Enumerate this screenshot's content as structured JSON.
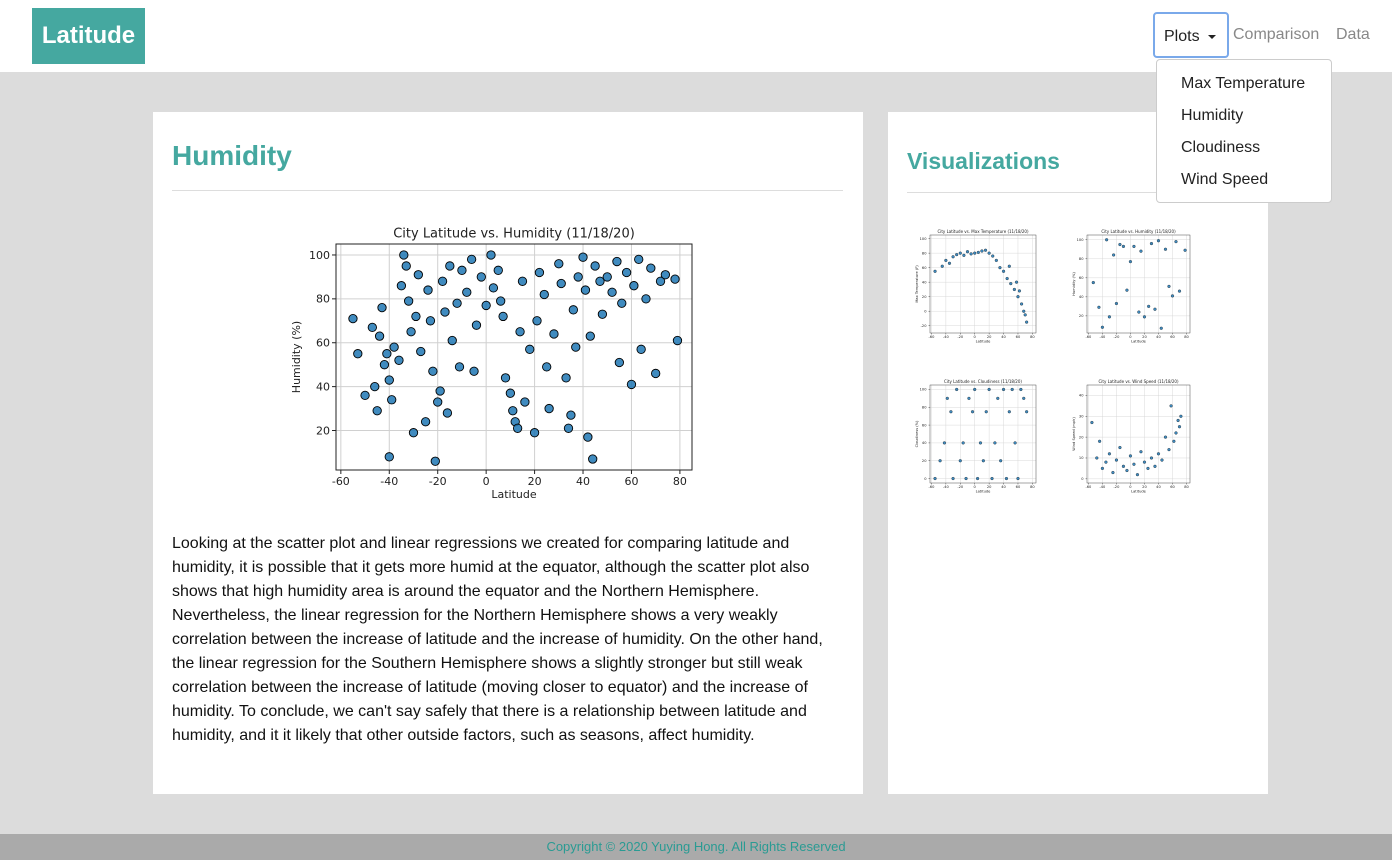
{
  "navbar": {
    "brand": "Latitude",
    "menu": [
      "Plots",
      "Comparison",
      "Data"
    ],
    "dropdown": [
      "Max Temperature",
      "Humidity",
      "Cloudiness",
      "Wind Speed"
    ]
  },
  "main": {
    "heading": "Humidity",
    "paragraph": "Looking at the scatter plot and linear regressions we created for comparing latitude and humidity, it is possible that it gets more humid at the equator, although the scatter plot also shows that high humidity area is around the equator and the Northern Hemisphere. Nevertheless, the linear regression for the Northern Hemisphere shows a very weakly correlation between the increase of latitude and the increase of humidity. On the other hand, the linear regression for the Southern Hemisphere shows a slightly stronger but still weak correlation between the increase of latitude (moving closer to equator) and the increase of humidity. To conclude, we can't say safely that there is a relationship between latitude and humidity, and it it likely that other outside factors, such as seasons, affect humidity."
  },
  "sidebar": {
    "heading": "Visualizations"
  },
  "footer": "Copyright © 2020 Yuying Hong. All Rights Reserved",
  "chart_data": [
    {
      "type": "scatter",
      "title": "City Latitude vs. Humidity (11/18/20)",
      "x_label": "Latitude",
      "y_label": "Humidity (%)",
      "color": "#1f77b4",
      "grid": true,
      "xlim": [
        -62,
        85
      ],
      "ylim": [
        2,
        105
      ],
      "xticks": [
        -60,
        -40,
        -20,
        0,
        20,
        40,
        60,
        80
      ],
      "yticks": [
        20,
        40,
        60,
        80,
        100
      ],
      "x": [
        -55,
        -53,
        -50,
        -47,
        -46,
        -45,
        -44,
        -43,
        -42,
        -41,
        -40,
        -40,
        -39,
        -38,
        -36,
        -35,
        -34,
        -33,
        -32,
        -31,
        -30,
        -29,
        -28,
        -27,
        -25,
        -24,
        -23,
        -22,
        -21,
        -20,
        -19,
        -18,
        -17,
        -16,
        -15,
        -14,
        -12,
        -11,
        -10,
        -8,
        -6,
        -5,
        -4,
        -2,
        0,
        2,
        3,
        5,
        6,
        7,
        8,
        10,
        11,
        12,
        13,
        14,
        15,
        16,
        18,
        20,
        21,
        22,
        24,
        25,
        26,
        28,
        30,
        31,
        33,
        34,
        35,
        36,
        37,
        38,
        40,
        41,
        42,
        43,
        44,
        45,
        47,
        48,
        50,
        52,
        54,
        55,
        56,
        58,
        60,
        61,
        63,
        64,
        66,
        68,
        70,
        72,
        74,
        78,
        79
      ],
      "values": [
        71,
        55,
        36,
        67,
        40,
        29,
        63,
        76,
        50,
        55,
        43,
        8,
        34,
        58,
        52,
        86,
        100,
        95,
        79,
        65,
        19,
        72,
        91,
        56,
        24,
        84,
        70,
        47,
        6,
        33,
        38,
        88,
        74,
        28,
        95,
        61,
        78,
        49,
        93,
        83,
        98,
        47,
        68,
        90,
        77,
        100,
        85,
        93,
        79,
        72,
        44,
        37,
        29,
        24,
        21,
        65,
        88,
        33,
        57,
        19,
        70,
        92,
        82,
        49,
        30,
        64,
        96,
        87,
        44,
        21,
        27,
        75,
        58,
        90,
        99,
        84,
        17,
        63,
        7,
        95,
        88,
        73,
        90,
        83,
        97,
        51,
        78,
        92,
        41,
        86,
        98,
        57,
        80,
        94,
        46,
        88,
        91,
        89,
        61
      ]
    },
    {
      "type": "scatter",
      "title": "City Latitude vs. Max Temperature (11/18/20)",
      "x_label": "Latitude",
      "y_label": "Max Temperature (F)",
      "color": "#1f77b4",
      "grid": true,
      "xlim": [
        -62,
        85
      ],
      "ylim": [
        -30,
        105
      ],
      "xticks": [
        -60,
        -40,
        -20,
        0,
        20,
        40,
        60,
        80
      ],
      "yticks": [
        -20,
        0,
        20,
        40,
        60,
        80,
        100
      ],
      "x": [
        -55,
        -45,
        -40,
        -35,
        -30,
        -25,
        -20,
        -15,
        -10,
        -5,
        0,
        5,
        10,
        15,
        20,
        25,
        30,
        35,
        40,
        45,
        50,
        55,
        60,
        65,
        68,
        70,
        72,
        48,
        58,
        62
      ],
      "values": [
        55,
        62,
        70,
        66,
        75,
        78,
        80,
        77,
        82,
        79,
        80,
        81,
        83,
        84,
        80,
        76,
        70,
        60,
        55,
        45,
        38,
        30,
        20,
        10,
        0,
        -5,
        -15,
        62,
        40,
        28
      ]
    },
    {
      "type": "scatter",
      "title": "City Latitude vs. Humidity (11/18/20)",
      "x_label": "Latitude",
      "y_label": "Humidity (%)",
      "color": "#1f77b4",
      "grid": true,
      "xlim": [
        -62,
        85
      ],
      "ylim": [
        2,
        105
      ],
      "xticks": [
        -60,
        -40,
        -20,
        0,
        20,
        40,
        60,
        80
      ],
      "yticks": [
        20,
        40,
        60,
        80,
        100
      ],
      "x": [
        -53,
        -45,
        -40,
        -34,
        -30,
        -24,
        -20,
        -15,
        -10,
        -5,
        0,
        5,
        12,
        15,
        20,
        26,
        30,
        35,
        40,
        44,
        50,
        55,
        60,
        65,
        70,
        78
      ],
      "values": [
        55,
        29,
        8,
        100,
        19,
        84,
        33,
        95,
        93,
        47,
        77,
        93,
        24,
        88,
        19,
        30,
        96,
        27,
        99,
        7,
        90,
        51,
        41,
        98,
        46,
        89
      ]
    },
    {
      "type": "scatter",
      "title": "City Latitude vs. Cloudiness (11/18/20)",
      "x_label": "Latitude",
      "y_label": "Cloudiness (%)",
      "color": "#1f77b4",
      "grid": true,
      "xlim": [
        -62,
        85
      ],
      "ylim": [
        -5,
        105
      ],
      "xticks": [
        -60,
        -40,
        -20,
        0,
        20,
        40,
        60,
        80
      ],
      "yticks": [
        0,
        20,
        40,
        60,
        80,
        100
      ],
      "x": [
        -55,
        -48,
        -42,
        -38,
        -33,
        -30,
        -25,
        -20,
        -16,
        -12,
        -8,
        -3,
        0,
        4,
        8,
        12,
        16,
        20,
        24,
        28,
        32,
        36,
        40,
        44,
        48,
        52,
        56,
        60,
        64,
        68,
        72
      ],
      "values": [
        0,
        20,
        40,
        90,
        75,
        0,
        100,
        20,
        40,
        0,
        90,
        75,
        100,
        0,
        40,
        20,
        75,
        100,
        0,
        40,
        90,
        20,
        100,
        0,
        75,
        100,
        40,
        0,
        100,
        90,
        75
      ]
    },
    {
      "type": "scatter",
      "title": "City Latitude vs. Wind Speed (11/18/20)",
      "x_label": "Latitude",
      "y_label": "Wind Speed (mph)",
      "color": "#1f77b4",
      "grid": true,
      "xlim": [
        -62,
        85
      ],
      "ylim": [
        -2,
        45
      ],
      "xticks": [
        -60,
        -40,
        -20,
        0,
        20,
        40,
        60,
        80
      ],
      "yticks": [
        0,
        10,
        20,
        30,
        40
      ],
      "x": [
        -55,
        -48,
        -44,
        -40,
        -35,
        -30,
        -25,
        -20,
        -15,
        -10,
        -5,
        0,
        5,
        10,
        15,
        20,
        25,
        30,
        35,
        40,
        45,
        50,
        55,
        58,
        62,
        65,
        68,
        70,
        72
      ],
      "values": [
        27,
        10,
        18,
        5,
        8,
        12,
        3,
        9,
        15,
        6,
        4,
        11,
        7,
        2,
        13,
        8,
        5,
        10,
        6,
        12,
        9,
        20,
        14,
        35,
        18,
        22,
        28,
        25,
        30
      ]
    }
  ]
}
